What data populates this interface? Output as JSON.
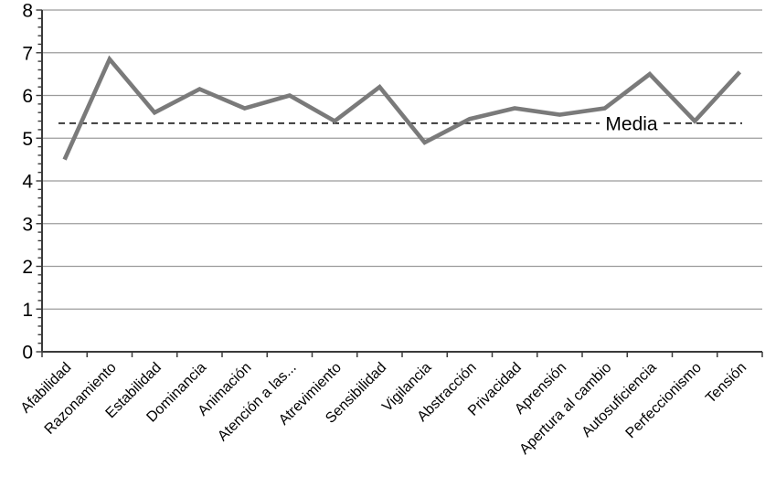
{
  "chart_data": {
    "type": "line",
    "categories": [
      "Afabilidad",
      "Razonamiento",
      "Estabilidad",
      "Dominancia",
      "Animación",
      "Atención a las...",
      "Atrevimiento",
      "Sensibilidad",
      "Vigilancia",
      "Abstracción",
      "Privacidad",
      "Aprensión",
      "Apertura al cambio",
      "Autosuficiencia",
      "Perfeccionismo",
      "Tensión"
    ],
    "values": [
      4.5,
      6.85,
      5.6,
      6.15,
      5.7,
      6.0,
      5.4,
      6.2,
      4.9,
      5.45,
      5.7,
      5.55,
      5.7,
      6.5,
      5.4,
      6.55
    ],
    "reference_line": {
      "label": "Media",
      "value": 5.35
    },
    "y_tick_labels": [
      "0",
      "1",
      "2",
      "3",
      "4",
      "5",
      "6",
      "7",
      "8"
    ],
    "ylim": [
      0,
      8
    ],
    "y_major_step": 1,
    "y_minor_step": 0.2,
    "grid": "horizontal",
    "legend": "none",
    "title": "",
    "xlabel": "",
    "ylabel": "",
    "colors": {
      "series_line": "#7a7a7a",
      "gridline": "#9b9b9b",
      "axis": "#3a3a3a",
      "reference_line": "#262626",
      "text": "#000000",
      "background": "#ffffff"
    }
  }
}
